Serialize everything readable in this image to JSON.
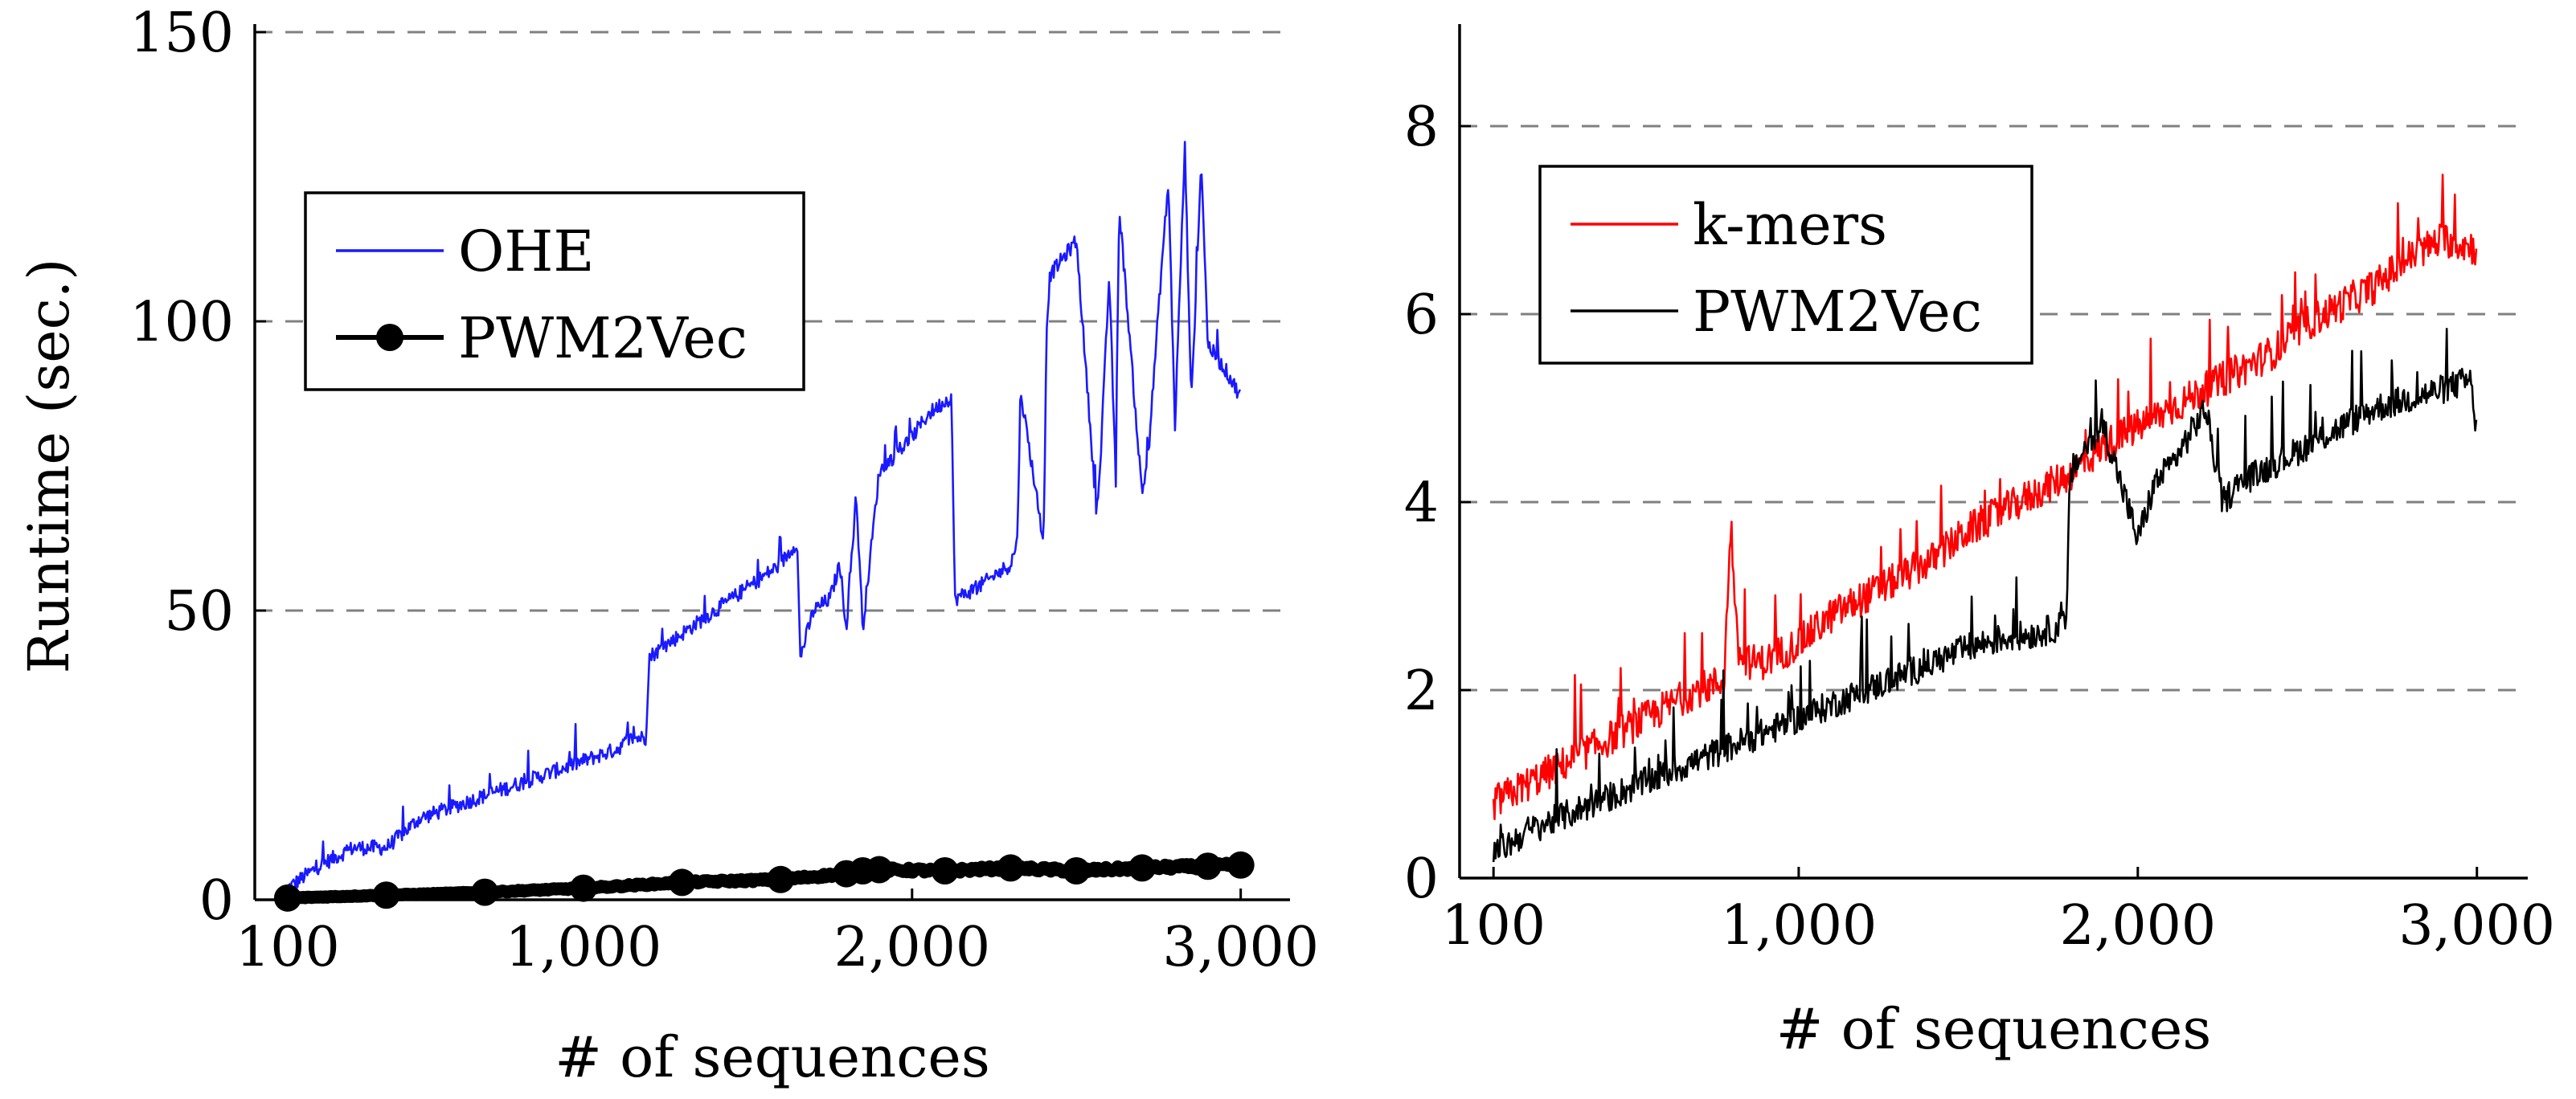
{
  "chart_data": [
    {
      "type": "line",
      "xlabel": "# of sequences",
      "ylabel": "Runtime (sec.)",
      "xlim": [
        0,
        3150
      ],
      "ylim": [
        0,
        150
      ],
      "xticks": [
        {
          "value": 100,
          "label": "100"
        },
        {
          "value": 1000,
          "label": "1,000"
        },
        {
          "value": 2000,
          "label": "2,000"
        },
        {
          "value": 3000,
          "label": "3,000"
        }
      ],
      "yticks": [
        {
          "value": 0,
          "label": "0"
        },
        {
          "value": 50,
          "label": "50"
        },
        {
          "value": 100,
          "label": "100"
        },
        {
          "value": 150,
          "label": "150"
        }
      ],
      "grid": "horizontal dashed",
      "legend_position": "upper-left",
      "series": [
        {
          "name": "OHE",
          "color": "#1a1aff",
          "marker": "none",
          "x": [
            100,
            200,
            300,
            400,
            500,
            600,
            700,
            800,
            900,
            1000,
            1100,
            1150,
            1190,
            1200,
            1300,
            1400,
            1500,
            1600,
            1650,
            1660,
            1700,
            1750,
            1780,
            1800,
            1830,
            1850,
            1900,
            2000,
            2050,
            2120,
            2130,
            2200,
            2300,
            2320,
            2330,
            2400,
            2410,
            2420,
            2500,
            2560,
            2570,
            2600,
            2620,
            2630,
            2700,
            2720,
            2760,
            2780,
            2800,
            2830,
            2850,
            2880,
            2900,
            2960,
            3000
          ],
          "values": [
            2,
            6,
            9,
            9,
            14,
            16,
            18,
            20,
            22,
            24,
            26,
            28,
            28,
            42,
            46,
            50,
            54,
            58,
            62,
            42,
            50,
            52,
            58,
            47,
            70,
            47,
            74,
            80,
            84,
            87,
            52,
            54,
            58,
            62,
            88,
            62,
            100,
            108,
            114,
            68,
            72,
            108,
            72,
            120,
            70,
            78,
            110,
            124,
            82,
            130,
            86,
            128,
            96,
            91,
            87
          ]
        },
        {
          "name": "PWM2Vec",
          "color": "#000000",
          "marker": "circle",
          "x": [
            100,
            400,
            700,
            1000,
            1300,
            1600,
            1800,
            1850,
            1900,
            2100,
            2300,
            2500,
            2700,
            2900,
            3000
          ],
          "values": [
            0.3,
            0.8,
            1.3,
            2.0,
            3.0,
            3.5,
            4.5,
            5.0,
            5.2,
            5.0,
            5.5,
            5.0,
            5.5,
            5.8,
            6.0
          ]
        }
      ]
    },
    {
      "type": "line",
      "xlabel": "# of sequences",
      "ylabel": "",
      "xlim": [
        0,
        3150
      ],
      "ylim": [
        0,
        9
      ],
      "xticks": [
        {
          "value": 100,
          "label": "100"
        },
        {
          "value": 1000,
          "label": "1,000"
        },
        {
          "value": 2000,
          "label": "2,000"
        },
        {
          "value": 3000,
          "label": "3,000"
        }
      ],
      "yticks": [
        {
          "value": 0,
          "label": "0"
        },
        {
          "value": 2,
          "label": "2"
        },
        {
          "value": 4,
          "label": "4"
        },
        {
          "value": 6,
          "label": "6"
        },
        {
          "value": 8,
          "label": "8"
        }
      ],
      "grid": "horizontal dashed",
      "legend_position": "upper-left",
      "series": [
        {
          "name": "k-mers",
          "color": "#ff0000",
          "marker": "none",
          "x": [
            100,
            200,
            300,
            400,
            500,
            600,
            700,
            780,
            800,
            820,
            850,
            900,
            1000,
            1100,
            1200,
            1300,
            1400,
            1500,
            1600,
            1700,
            1800,
            1900,
            2000,
            2100,
            2200,
            2300,
            2400,
            2500,
            2600,
            2700,
            2800,
            2900,
            3000
          ],
          "values": [
            0.8,
            1.0,
            1.2,
            1.4,
            1.6,
            1.8,
            2.0,
            2.1,
            3.8,
            2.4,
            2.3,
            2.3,
            2.5,
            2.8,
            3.0,
            3.2,
            3.4,
            3.7,
            3.9,
            4.1,
            4.3,
            4.6,
            4.8,
            5.0,
            5.2,
            5.4,
            5.6,
            5.9,
            6.1,
            6.3,
            6.6,
            6.8,
            6.7
          ]
        },
        {
          "name": "PWM2Vec",
          "color": "#000000",
          "marker": "none",
          "x": [
            100,
            200,
            300,
            400,
            500,
            600,
            700,
            800,
            900,
            1000,
            1100,
            1200,
            1300,
            1400,
            1500,
            1600,
            1700,
            1790,
            1800,
            1850,
            1900,
            2000,
            2050,
            2100,
            2200,
            2250,
            2300,
            2400,
            2500,
            2600,
            2700,
            2800,
            2900,
            2980,
            3000
          ],
          "values": [
            0.25,
            0.5,
            0.65,
            0.8,
            0.95,
            1.1,
            1.25,
            1.4,
            1.55,
            1.7,
            1.85,
            2.0,
            2.15,
            2.3,
            2.45,
            2.55,
            2.6,
            2.7,
            4.3,
            4.6,
            4.8,
            3.6,
            4.2,
            4.4,
            5.0,
            4.0,
            4.2,
            4.4,
            4.6,
            4.8,
            5.0,
            5.1,
            5.2,
            5.3,
            4.7
          ]
        }
      ]
    }
  ]
}
